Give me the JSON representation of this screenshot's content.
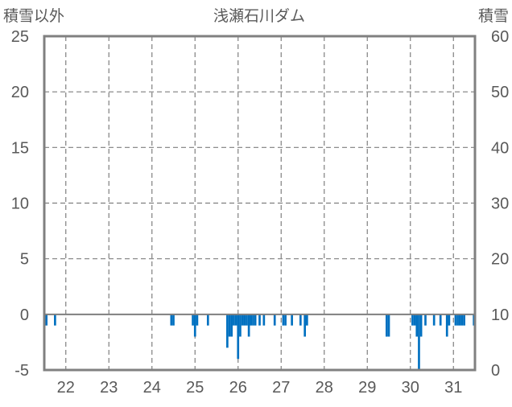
{
  "chart_data": {
    "type": "bar",
    "title": "浅瀬石川ダム",
    "left_axis": {
      "label": "積雪以外",
      "ylim": [
        -5,
        25
      ],
      "ticks": [
        "25",
        "20",
        "15",
        "10",
        "5",
        "0",
        "-5"
      ]
    },
    "right_axis": {
      "label": "積雪",
      "ylim": [
        0,
        60
      ],
      "ticks": [
        "60",
        "50",
        "40",
        "30",
        "20",
        "10",
        "0"
      ]
    },
    "x_axis": {
      "range_days": [
        21.5,
        31.5
      ],
      "tick_labels": [
        "22",
        "23",
        "24",
        "25",
        "26",
        "27",
        "28",
        "29",
        "30",
        "31"
      ]
    },
    "grid": true,
    "series": [
      {
        "axis": "left",
        "color": "#0070C0",
        "points": [
          {
            "x": 21.55,
            "y": -1
          },
          {
            "x": 21.75,
            "y": -1
          },
          {
            "x": 24.45,
            "y": -1
          },
          {
            "x": 24.5,
            "y": -1
          },
          {
            "x": 24.95,
            "y": -1
          },
          {
            "x": 25.0,
            "y": -2
          },
          {
            "x": 25.05,
            "y": -1
          },
          {
            "x": 25.3,
            "y": -1
          },
          {
            "x": 25.75,
            "y": -3
          },
          {
            "x": 25.8,
            "y": -2
          },
          {
            "x": 25.85,
            "y": -2
          },
          {
            "x": 25.9,
            "y": -1
          },
          {
            "x": 25.95,
            "y": -1
          },
          {
            "x": 26.0,
            "y": -4
          },
          {
            "x": 26.05,
            "y": -2
          },
          {
            "x": 26.1,
            "y": -1
          },
          {
            "x": 26.15,
            "y": -1
          },
          {
            "x": 26.2,
            "y": -1
          },
          {
            "x": 26.25,
            "y": -2
          },
          {
            "x": 26.3,
            "y": -1
          },
          {
            "x": 26.35,
            "y": -1
          },
          {
            "x": 26.4,
            "y": -1
          },
          {
            "x": 26.5,
            "y": -1
          },
          {
            "x": 26.6,
            "y": -1
          },
          {
            "x": 26.85,
            "y": -1
          },
          {
            "x": 27.05,
            "y": -1
          },
          {
            "x": 27.1,
            "y": -1
          },
          {
            "x": 27.25,
            "y": -1
          },
          {
            "x": 27.45,
            "y": -1
          },
          {
            "x": 27.55,
            "y": -2
          },
          {
            "x": 27.6,
            "y": -1
          },
          {
            "x": 29.45,
            "y": -2
          },
          {
            "x": 29.5,
            "y": -2
          },
          {
            "x": 30.05,
            "y": -1
          },
          {
            "x": 30.1,
            "y": -1
          },
          {
            "x": 30.15,
            "y": -2
          },
          {
            "x": 30.2,
            "y": -5
          },
          {
            "x": 30.25,
            "y": -2
          },
          {
            "x": 30.35,
            "y": -1
          },
          {
            "x": 30.55,
            "y": -1
          },
          {
            "x": 30.7,
            "y": -1
          },
          {
            "x": 30.85,
            "y": -2
          },
          {
            "x": 30.9,
            "y": -1
          },
          {
            "x": 31.05,
            "y": -1
          },
          {
            "x": 31.1,
            "y": -1
          },
          {
            "x": 31.15,
            "y": -1
          },
          {
            "x": 31.2,
            "y": -1
          },
          {
            "x": 31.25,
            "y": -1
          },
          {
            "x": 31.5,
            "y": -1
          }
        ]
      }
    ]
  }
}
